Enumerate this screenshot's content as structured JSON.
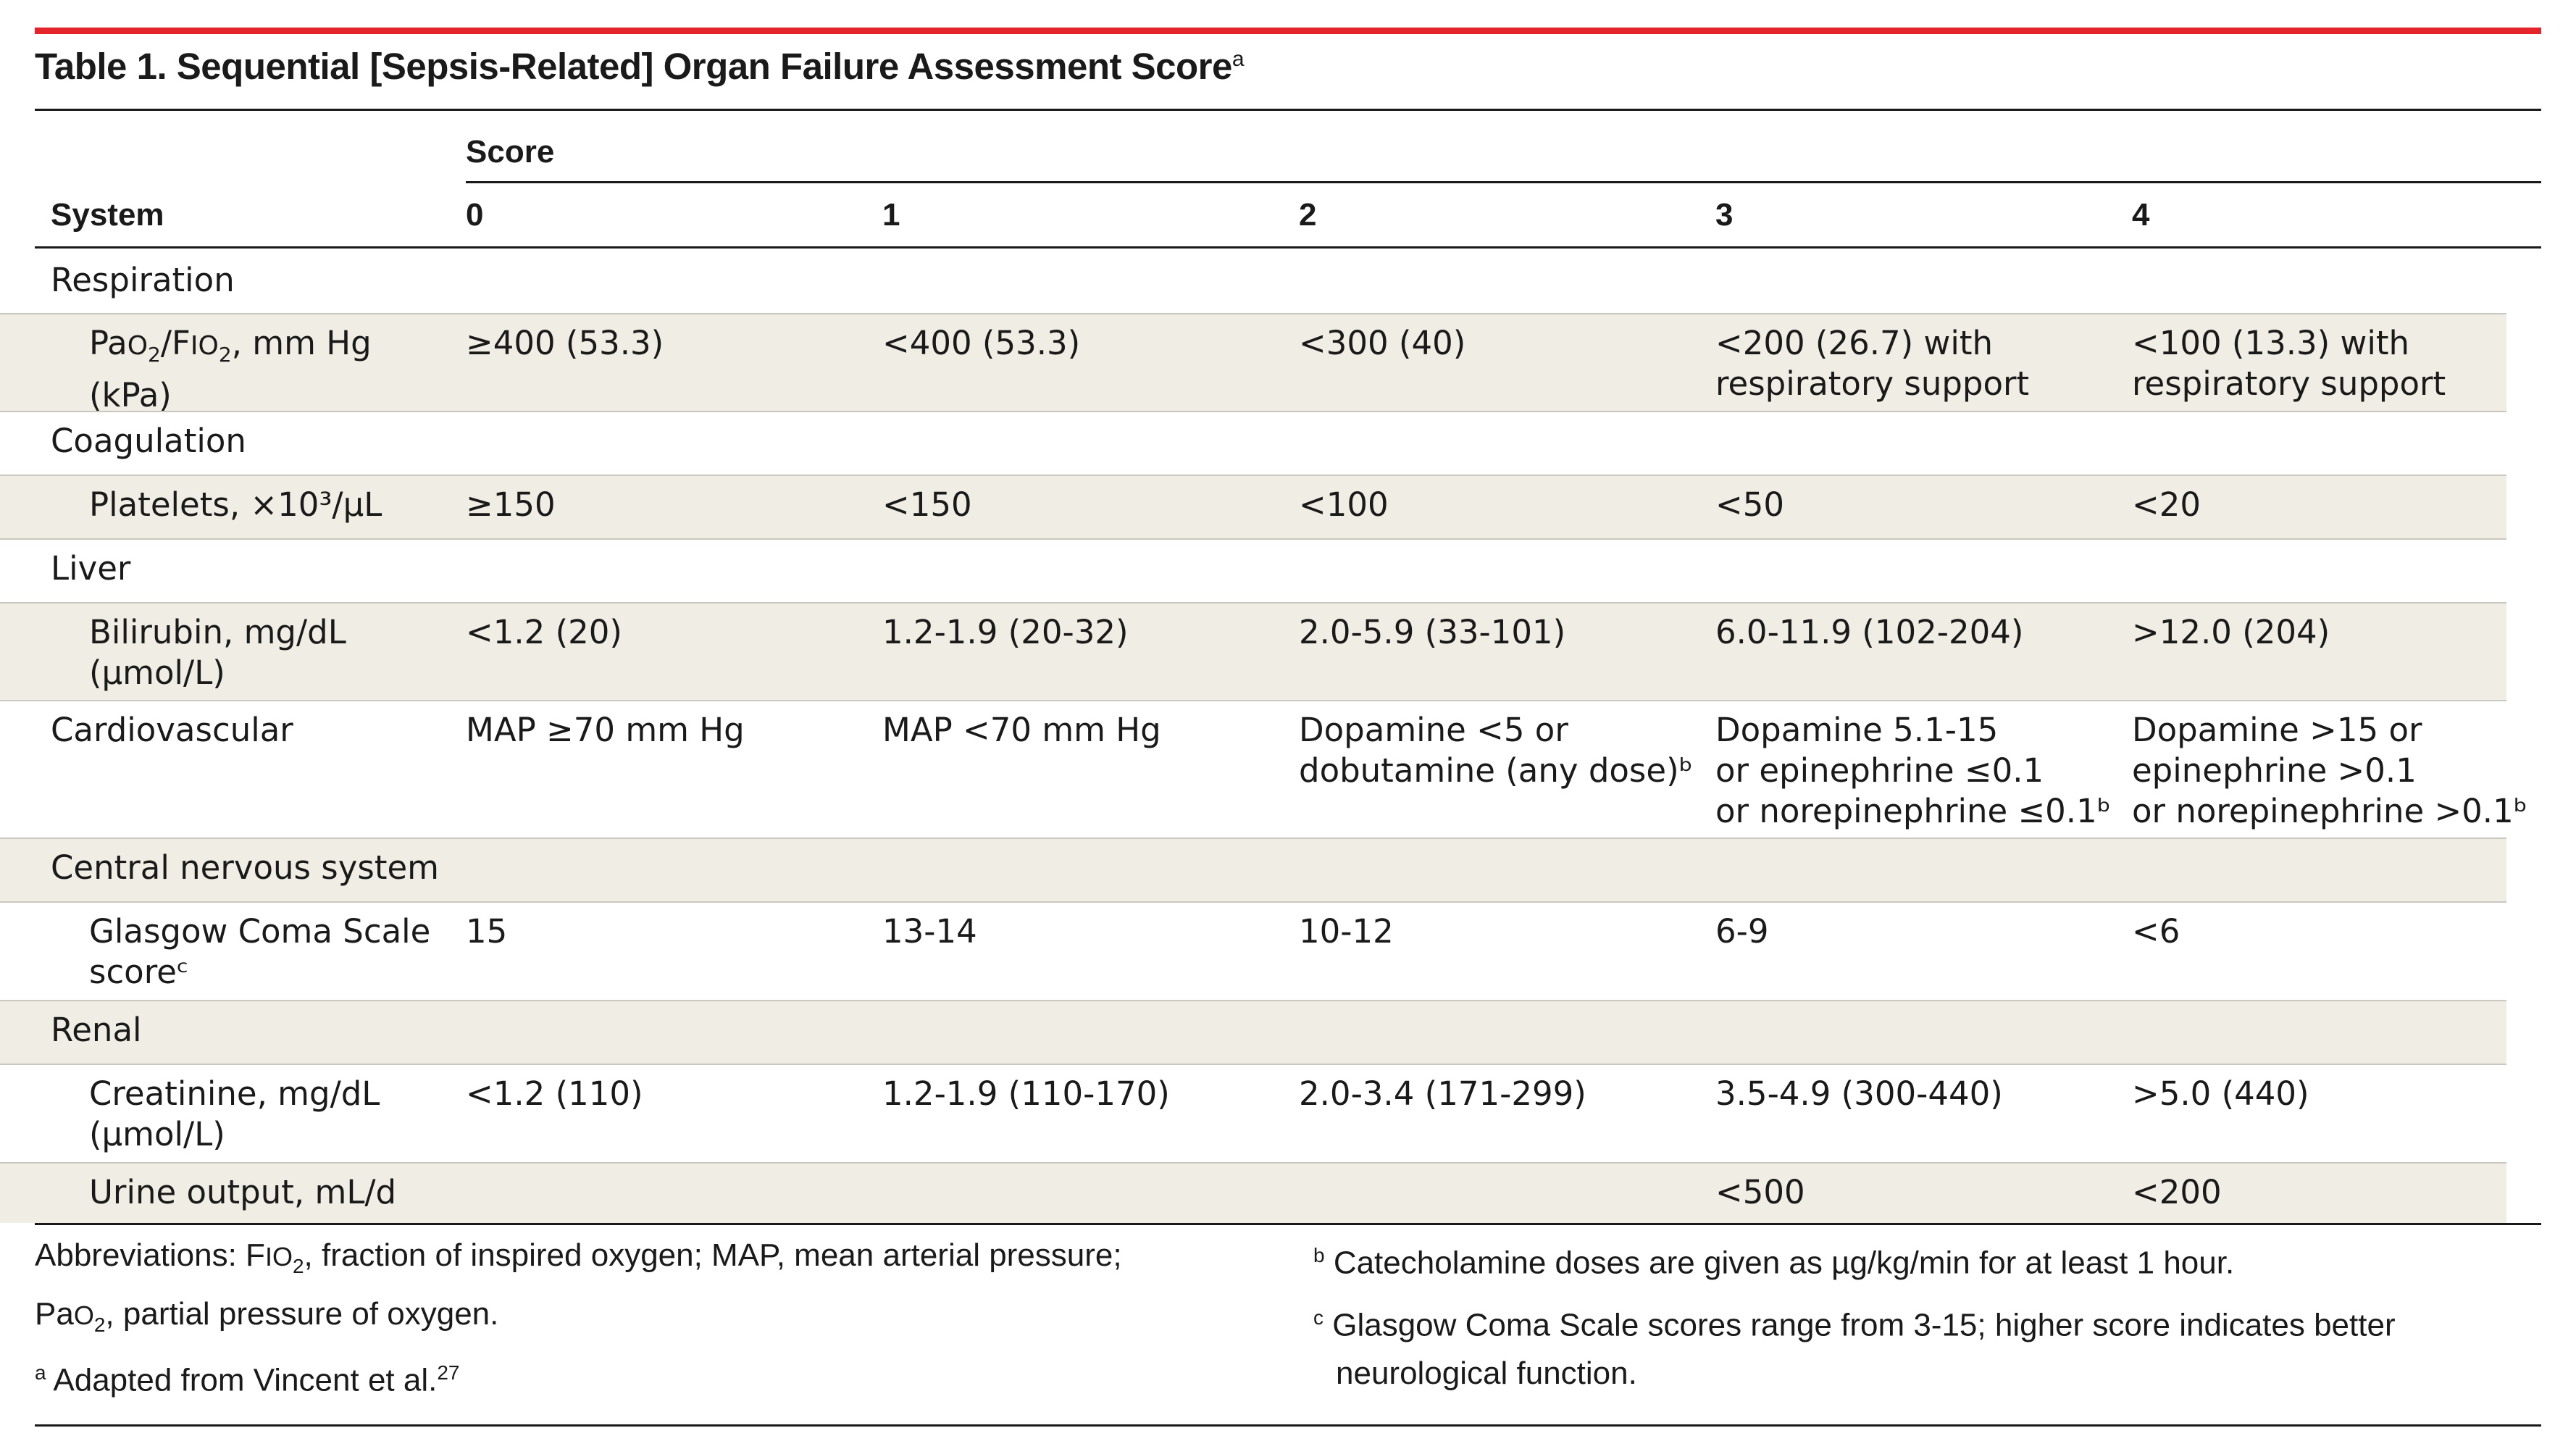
{
  "title": {
    "text": "Table 1. Sequential [Sepsis-Related] Organ Failure Assessment Score",
    "sup": "a"
  },
  "header": {
    "system_label": "System",
    "score_group_label": "Score",
    "score_columns": [
      "0",
      "1",
      "2",
      "3",
      "4"
    ]
  },
  "rows": [
    {
      "type": "section",
      "label": "Respiration"
    },
    {
      "type": "item",
      "label_lines": [
        "PaO2/FIO2, mm Hg",
        "(kPa)"
      ],
      "values": [
        [
          "≥400 (53.3)"
        ],
        [
          "<400 (53.3)"
        ],
        [
          "<300 (40)"
        ],
        [
          "<200 (26.7) with",
          "respiratory support"
        ],
        [
          "<100 (13.3) with",
          "respiratory support"
        ]
      ]
    },
    {
      "type": "section",
      "label": "Coagulation"
    },
    {
      "type": "item",
      "label_lines": [
        "Platelets, ×10³/µL"
      ],
      "values": [
        [
          "≥150"
        ],
        [
          "<150"
        ],
        [
          "<100"
        ],
        [
          "<50"
        ],
        [
          "<20"
        ]
      ]
    },
    {
      "type": "section",
      "label": "Liver"
    },
    {
      "type": "item",
      "label_lines": [
        "Bilirubin, mg/dL",
        "(µmol/L)"
      ],
      "values": [
        [
          "<1.2 (20)"
        ],
        [
          "1.2-1.9 (20-32)"
        ],
        [
          "2.0-5.9 (33-101)"
        ],
        [
          "6.0-11.9 (102-204)"
        ],
        [
          ">12.0 (204)"
        ]
      ]
    },
    {
      "type": "section-values",
      "label": "Cardiovascular",
      "values": [
        [
          "MAP ≥70 mm Hg"
        ],
        [
          "MAP <70 mm Hg"
        ],
        [
          "Dopamine <5 or",
          "dobutamine (any dose)ᵇ"
        ],
        [
          "Dopamine 5.1-15",
          "or epinephrine ≤0.1",
          "or norepinephrine ≤0.1ᵇ"
        ],
        [
          "Dopamine >15 or",
          "epinephrine >0.1",
          "or norepinephrine >0.1ᵇ"
        ]
      ]
    },
    {
      "type": "section",
      "label": "Central nervous system"
    },
    {
      "type": "item",
      "label_lines": [
        "Glasgow Coma Scale",
        "scoreᶜ"
      ],
      "values": [
        [
          "15"
        ],
        [
          "13-14"
        ],
        [
          "10-12"
        ],
        [
          "6-9"
        ],
        [
          "<6"
        ]
      ]
    },
    {
      "type": "section",
      "label": "Renal"
    },
    {
      "type": "item",
      "label_lines": [
        "Creatinine, mg/dL",
        "(µmol/L)"
      ],
      "values": [
        [
          "<1.2 (110)"
        ],
        [
          "1.2-1.9 (110-170)"
        ],
        [
          "2.0-3.4 (171-299)"
        ],
        [
          "3.5-4.9 (300-440)"
        ],
        [
          ">5.0 (440)"
        ]
      ]
    },
    {
      "type": "item",
      "label_lines": [
        "Urine output, mL/d"
      ],
      "values": [
        [
          ""
        ],
        [
          ""
        ],
        [
          ""
        ],
        [
          "<500"
        ],
        [
          "<200"
        ]
      ]
    }
  ],
  "footnotes": {
    "abbreviations": [
      "Abbreviations: FIO2, fraction of inspired oxygen; MAP, mean arterial pressure;",
      "PaO2, partial pressure of oxygen."
    ],
    "a": {
      "mark": "a",
      "text": "Adapted from Vincent et al.",
      "ref": "27"
    },
    "b": {
      "mark": "b",
      "text": "Catecholamine doses are given as µg/kg/min for at least 1 hour."
    },
    "c": {
      "mark": "c",
      "lines": [
        "Glasgow Coma Scale scores range from 3-15; higher score indicates better",
        "neurological function."
      ]
    }
  },
  "colors": {
    "accent_red": "#e3242b",
    "row_tint": "#efede4",
    "text": "#1a1a1a"
  }
}
